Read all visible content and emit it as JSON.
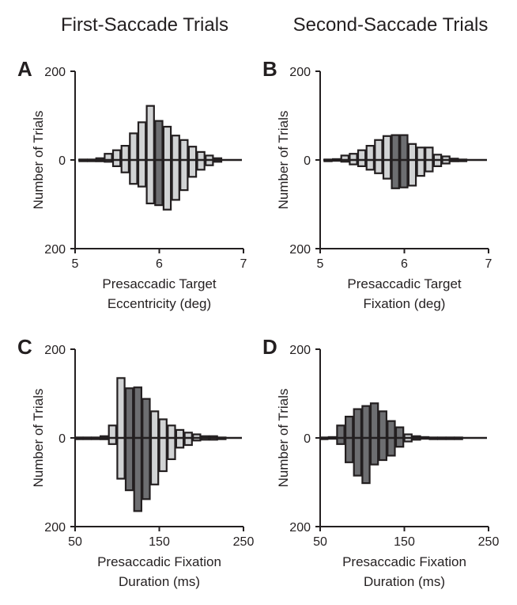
{
  "column_titles": [
    "First-Saccade Trials",
    "Second-Saccade Trials"
  ],
  "colors": {
    "light": "#d1d3d4",
    "dark": "#6d6e71",
    "stroke": "#231f20"
  },
  "chart_data": [
    {
      "type": "bar",
      "panel": "A",
      "ylabel": "Number of Trials",
      "xlabel": [
        "Presaccadic Target",
        "Eccentricity (deg)"
      ],
      "xlim": [
        5,
        7
      ],
      "xticks": [
        5,
        6,
        7
      ],
      "ylim": [
        -200,
        200
      ],
      "yticks": [
        200,
        0,
        200
      ],
      "bin_width": 0.1,
      "bars": [
        {
          "x": 5.1,
          "top": 1,
          "bottom": 1,
          "shade": "dark"
        },
        {
          "x": 5.2,
          "top": 1,
          "bottom": 1,
          "shade": "dark"
        },
        {
          "x": 5.3,
          "top": 4,
          "bottom": 3,
          "shade": "light"
        },
        {
          "x": 5.4,
          "top": 14,
          "bottom": 4,
          "shade": "light"
        },
        {
          "x": 5.5,
          "top": 22,
          "bottom": 14,
          "shade": "light"
        },
        {
          "x": 5.6,
          "top": 32,
          "bottom": 28,
          "shade": "light"
        },
        {
          "x": 5.7,
          "top": 60,
          "bottom": 54,
          "shade": "light"
        },
        {
          "x": 5.8,
          "top": 85,
          "bottom": 60,
          "shade": "light"
        },
        {
          "x": 5.9,
          "top": 122,
          "bottom": 98,
          "shade": "light"
        },
        {
          "x": 6.0,
          "top": 88,
          "bottom": 102,
          "shade": "dark"
        },
        {
          "x": 6.1,
          "top": 75,
          "bottom": 112,
          "shade": "light"
        },
        {
          "x": 6.2,
          "top": 55,
          "bottom": 90,
          "shade": "light"
        },
        {
          "x": 6.3,
          "top": 45,
          "bottom": 68,
          "shade": "light"
        },
        {
          "x": 6.4,
          "top": 30,
          "bottom": 38,
          "shade": "light"
        },
        {
          "x": 6.5,
          "top": 18,
          "bottom": 22,
          "shade": "light"
        },
        {
          "x": 6.6,
          "top": 10,
          "bottom": 12,
          "shade": "light"
        },
        {
          "x": 6.7,
          "top": 4,
          "bottom": 4,
          "shade": "dark"
        }
      ]
    },
    {
      "type": "bar",
      "panel": "B",
      "ylabel": "Number of Trials",
      "xlabel": [
        "Presaccadic Target",
        "Fixation (deg)"
      ],
      "xlim": [
        5,
        7
      ],
      "xticks": [
        5,
        6,
        7
      ],
      "ylim": [
        -200,
        200
      ],
      "yticks": [
        200,
        0,
        200
      ],
      "bin_width": 0.1,
      "bars": [
        {
          "x": 5.1,
          "top": 1,
          "bottom": 1,
          "shade": "dark"
        },
        {
          "x": 5.2,
          "top": 2,
          "bottom": 2,
          "shade": "dark"
        },
        {
          "x": 5.3,
          "top": 10,
          "bottom": 4,
          "shade": "light"
        },
        {
          "x": 5.4,
          "top": 14,
          "bottom": 10,
          "shade": "light"
        },
        {
          "x": 5.5,
          "top": 22,
          "bottom": 14,
          "shade": "light"
        },
        {
          "x": 5.6,
          "top": 32,
          "bottom": 22,
          "shade": "light"
        },
        {
          "x": 5.7,
          "top": 45,
          "bottom": 30,
          "shade": "light"
        },
        {
          "x": 5.8,
          "top": 54,
          "bottom": 42,
          "shade": "light"
        },
        {
          "x": 5.9,
          "top": 56,
          "bottom": 64,
          "shade": "dark"
        },
        {
          "x": 6.0,
          "top": 56,
          "bottom": 62,
          "shade": "dark"
        },
        {
          "x": 6.1,
          "top": 36,
          "bottom": 58,
          "shade": "light"
        },
        {
          "x": 6.2,
          "top": 28,
          "bottom": 36,
          "shade": "light"
        },
        {
          "x": 6.3,
          "top": 28,
          "bottom": 26,
          "shade": "light"
        },
        {
          "x": 6.4,
          "top": 12,
          "bottom": 14,
          "shade": "light"
        },
        {
          "x": 6.5,
          "top": 8,
          "bottom": 8,
          "shade": "light"
        },
        {
          "x": 6.6,
          "top": 3,
          "bottom": 3,
          "shade": "dark"
        },
        {
          "x": 6.7,
          "top": 1,
          "bottom": 1,
          "shade": "dark"
        }
      ]
    },
    {
      "type": "bar",
      "panel": "C",
      "ylabel": "Number of Trials",
      "xlabel": [
        "Presaccadic Fixation",
        "Duration (ms)"
      ],
      "xlim": [
        50,
        250
      ],
      "xticks": [
        50,
        150,
        250
      ],
      "ylim": [
        -200,
        200
      ],
      "yticks": [
        200,
        0,
        200
      ],
      "bin_width": 10,
      "bars": [
        {
          "x": 55,
          "top": 1,
          "bottom": 1,
          "shade": "dark"
        },
        {
          "x": 65,
          "top": 1,
          "bottom": 1,
          "shade": "dark"
        },
        {
          "x": 75,
          "top": 1,
          "bottom": 2,
          "shade": "dark"
        },
        {
          "x": 85,
          "top": 4,
          "bottom": 3,
          "shade": "dark"
        },
        {
          "x": 95,
          "top": 28,
          "bottom": 14,
          "shade": "light"
        },
        {
          "x": 105,
          "top": 135,
          "bottom": 92,
          "shade": "light"
        },
        {
          "x": 115,
          "top": 112,
          "bottom": 118,
          "shade": "dark"
        },
        {
          "x": 125,
          "top": 114,
          "bottom": 165,
          "shade": "dark"
        },
        {
          "x": 135,
          "top": 88,
          "bottom": 138,
          "shade": "dark"
        },
        {
          "x": 145,
          "top": 60,
          "bottom": 105,
          "shade": "light"
        },
        {
          "x": 155,
          "top": 42,
          "bottom": 75,
          "shade": "light"
        },
        {
          "x": 165,
          "top": 28,
          "bottom": 48,
          "shade": "light"
        },
        {
          "x": 175,
          "top": 18,
          "bottom": 22,
          "shade": "light"
        },
        {
          "x": 185,
          "top": 12,
          "bottom": 16,
          "shade": "light"
        },
        {
          "x": 195,
          "top": 8,
          "bottom": 6,
          "shade": "light"
        },
        {
          "x": 205,
          "top": 4,
          "bottom": 4,
          "shade": "light"
        },
        {
          "x": 215,
          "top": 4,
          "bottom": 4,
          "shade": "light"
        },
        {
          "x": 225,
          "top": 1,
          "bottom": 1,
          "shade": "dark"
        }
      ]
    },
    {
      "type": "bar",
      "panel": "D",
      "ylabel": "Number of Trials",
      "xlabel": [
        "Presaccadic Fixation",
        "Duration (ms)"
      ],
      "xlim": [
        50,
        250
      ],
      "xticks": [
        50,
        150,
        250
      ],
      "ylim": [
        -200,
        200
      ],
      "yticks": [
        200,
        0,
        200
      ],
      "bin_width": 10,
      "bars": [
        {
          "x": 55,
          "top": 1,
          "bottom": 1,
          "shade": "dark"
        },
        {
          "x": 65,
          "top": 2,
          "bottom": 1,
          "shade": "dark"
        },
        {
          "x": 75,
          "top": 28,
          "bottom": 14,
          "shade": "dark"
        },
        {
          "x": 85,
          "top": 48,
          "bottom": 55,
          "shade": "dark"
        },
        {
          "x": 95,
          "top": 65,
          "bottom": 85,
          "shade": "dark"
        },
        {
          "x": 105,
          "top": 72,
          "bottom": 102,
          "shade": "dark"
        },
        {
          "x": 115,
          "top": 78,
          "bottom": 60,
          "shade": "dark"
        },
        {
          "x": 125,
          "top": 60,
          "bottom": 50,
          "shade": "dark"
        },
        {
          "x": 135,
          "top": 38,
          "bottom": 40,
          "shade": "dark"
        },
        {
          "x": 145,
          "top": 24,
          "bottom": 20,
          "shade": "dark"
        },
        {
          "x": 155,
          "top": 8,
          "bottom": 8,
          "shade": "light"
        },
        {
          "x": 165,
          "top": 4,
          "bottom": 4,
          "shade": "dark"
        },
        {
          "x": 175,
          "top": 2,
          "bottom": 2,
          "shade": "dark"
        },
        {
          "x": 185,
          "top": 1,
          "bottom": 1,
          "shade": "dark"
        },
        {
          "x": 195,
          "top": 1,
          "bottom": 1,
          "shade": "dark"
        },
        {
          "x": 205,
          "top": 1,
          "bottom": 1,
          "shade": "dark"
        },
        {
          "x": 215,
          "top": 1,
          "bottom": 1,
          "shade": "dark"
        }
      ]
    }
  ]
}
